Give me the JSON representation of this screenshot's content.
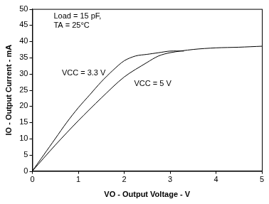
{
  "chart_data": {
    "type": "line",
    "xlabel": "VO - Output Voltage - V",
    "ylabel": "IO - Output Current - mA",
    "annotations": [
      "Load = 15 pF,",
      "TA = 25°C"
    ],
    "xlim": [
      0,
      5
    ],
    "xticks": [
      0,
      1,
      2,
      3,
      4,
      5
    ],
    "ylim": [
      0,
      50
    ],
    "yticks": [
      0,
      5,
      10,
      15,
      20,
      25,
      30,
      35,
      40,
      45,
      50
    ],
    "grid": false,
    "series": [
      {
        "name": "VCC = 3.3 V",
        "color": "#000000",
        "x": [
          0,
          0.25,
          0.5,
          0.75,
          1,
          1.25,
          1.5,
          1.75,
          2,
          2.25,
          2.5,
          2.75,
          3,
          3.3
        ],
        "values": [
          0,
          5,
          10,
          15,
          19.5,
          23.5,
          27.5,
          31,
          34,
          35.5,
          36,
          36.5,
          37,
          37
        ]
      },
      {
        "name": "VCC = 5 V",
        "color": "#000000",
        "x": [
          0,
          0.5,
          1,
          1.5,
          2,
          2.5,
          2.75,
          3,
          3.5,
          4,
          4.5,
          5
        ],
        "values": [
          0,
          8,
          15.5,
          22.5,
          29,
          33.5,
          35.5,
          36.5,
          37.5,
          38,
          38.2,
          38.5
        ]
      }
    ]
  }
}
